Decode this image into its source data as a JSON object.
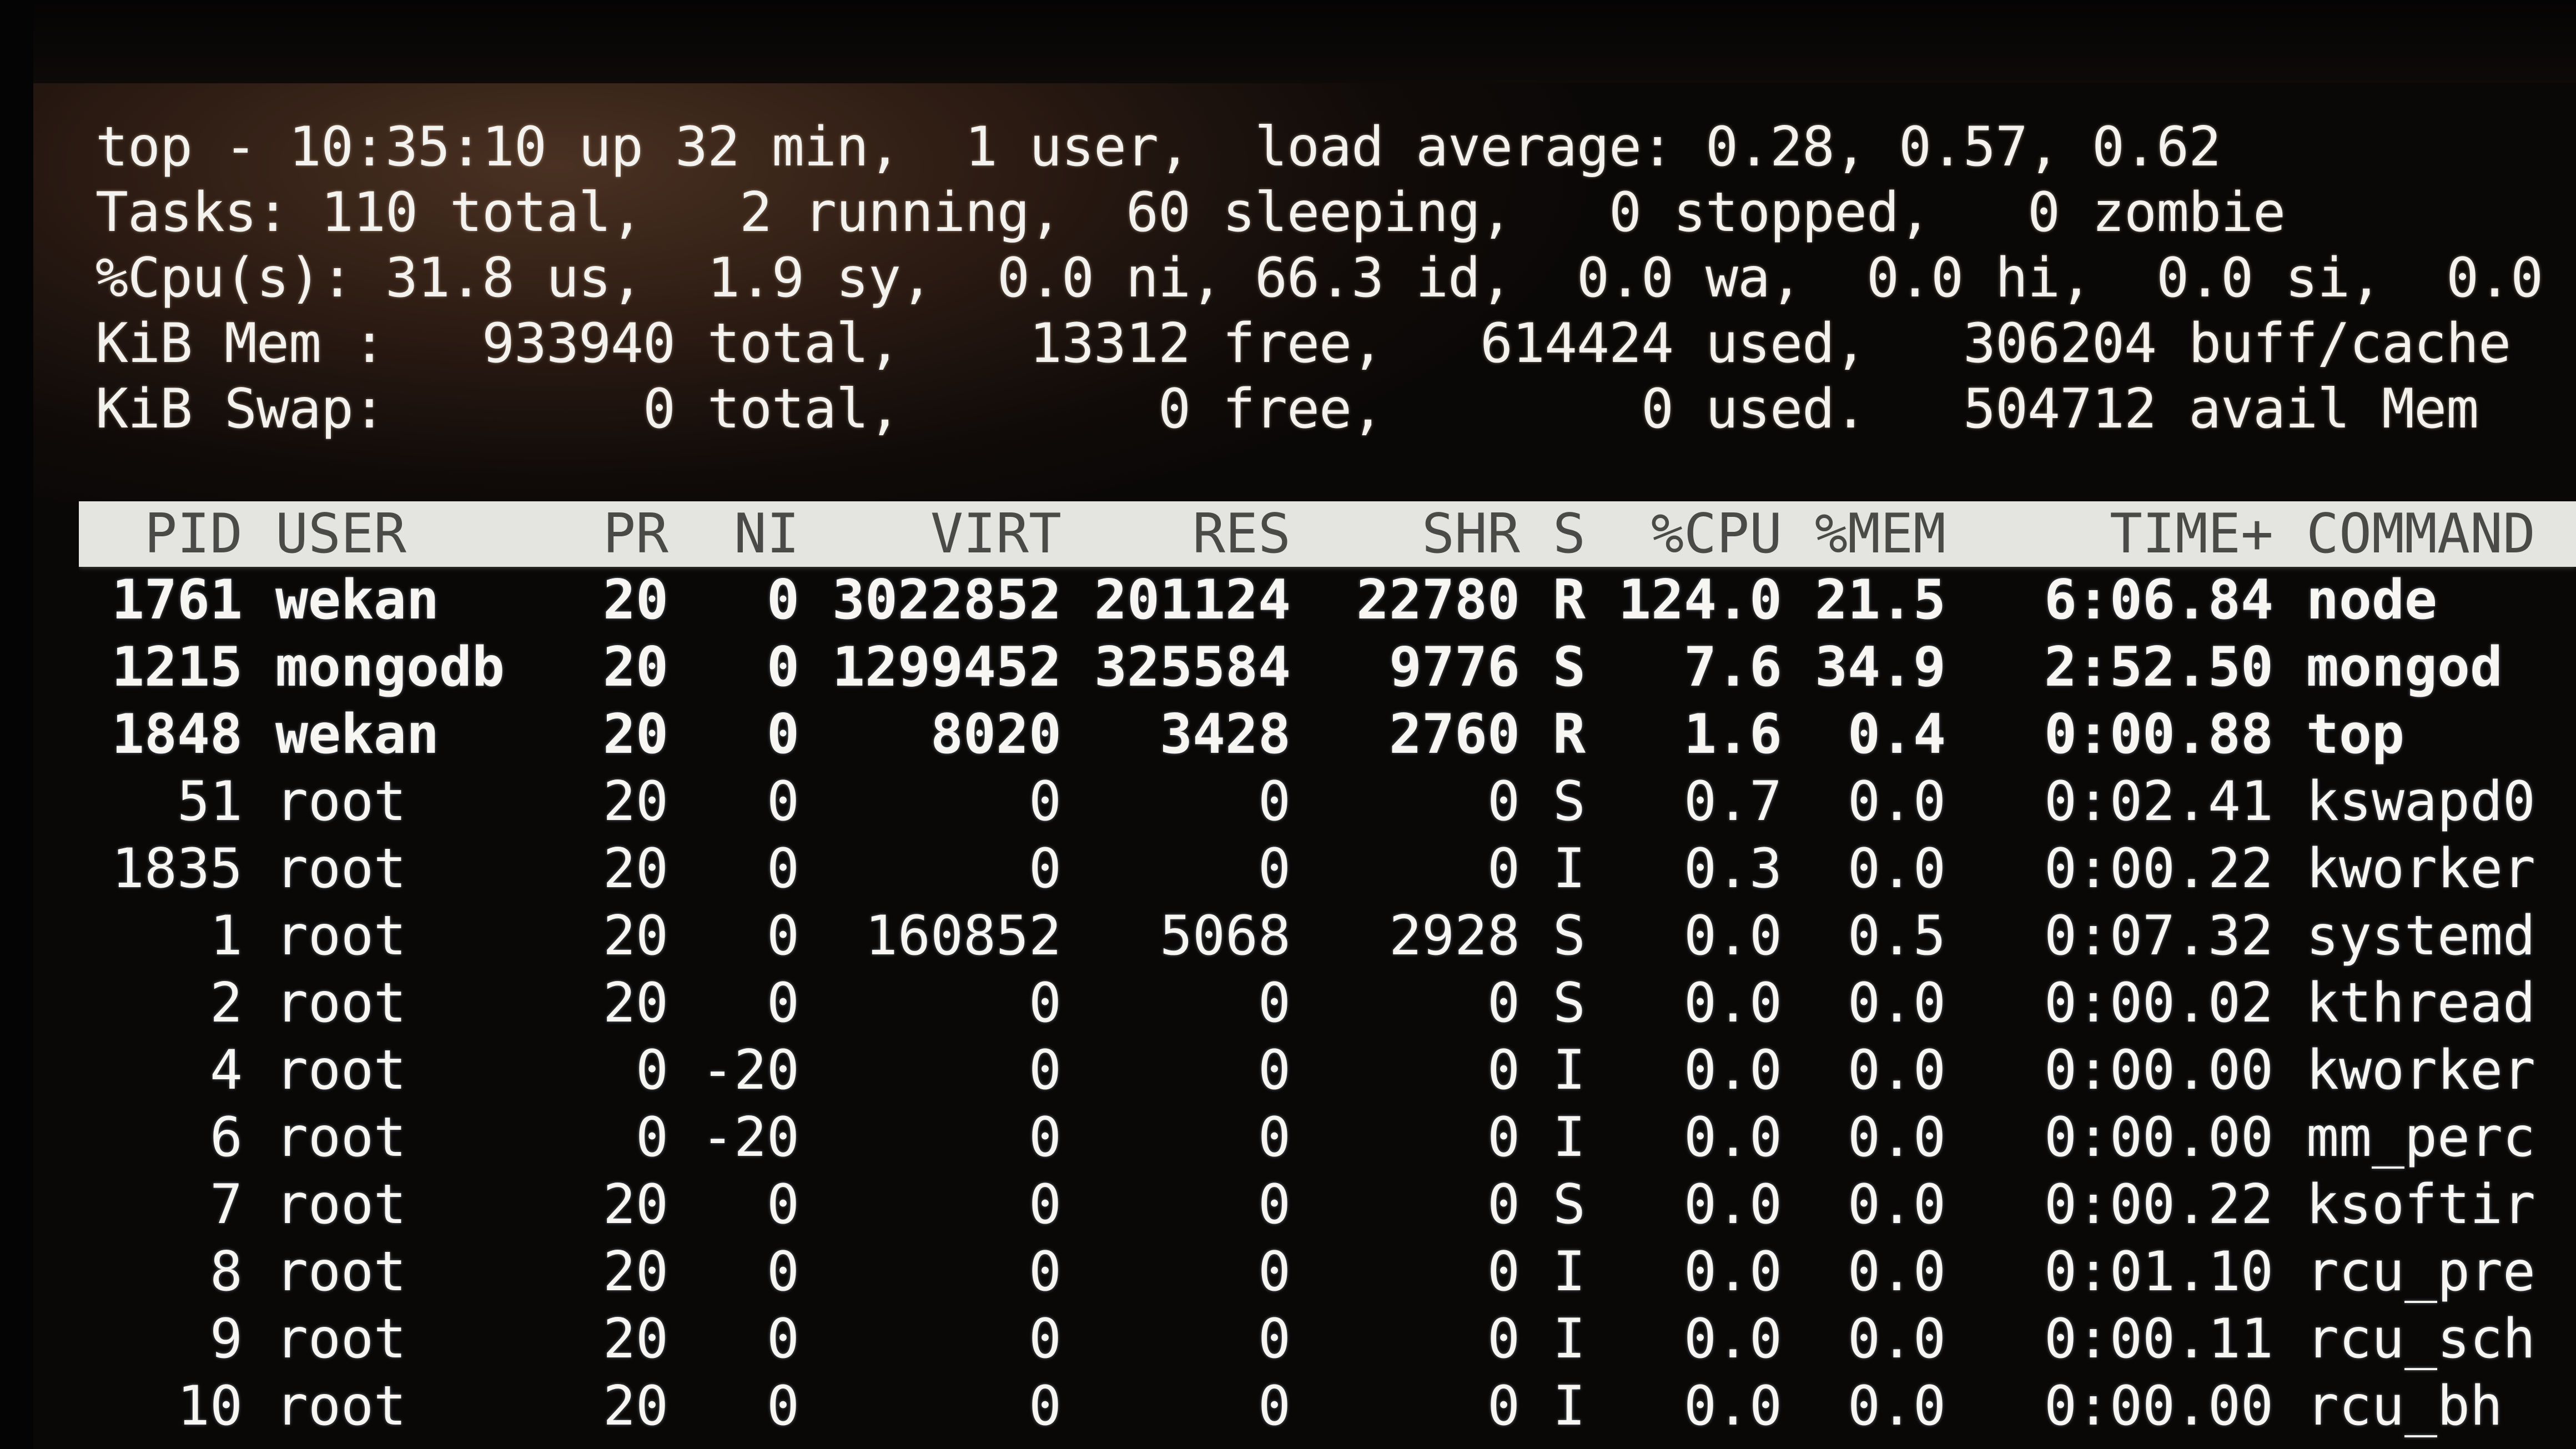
{
  "summary": {
    "line1": "top - 10:35:10 up 32 min,  1 user,  load average: 0.28, 0.57, 0.62",
    "line2": "Tasks: 110 total,   2 running,  60 sleeping,   0 stopped,   0 zombie",
    "line3": "%Cpu(s): 31.8 us,  1.9 sy,  0.0 ni, 66.3 id,  0.0 wa,  0.0 hi,  0.0 si,  0.0",
    "line4": "KiB Mem :   933940 total,    13312 free,   614424 used,   306204 buff/cache",
    "line5": "KiB Swap:        0 total,        0 free,        0 used.   504712 avail Mem"
  },
  "table": {
    "columns": [
      "PID",
      "USER",
      "PR",
      "NI",
      "VIRT",
      "RES",
      "SHR",
      "S",
      "%CPU",
      "%MEM",
      "TIME+",
      "COMMAND"
    ],
    "rows": [
      [
        "1761",
        "wekan",
        "20",
        "0",
        "3022852",
        "201124",
        "22780",
        "R",
        "124.0",
        "21.5",
        "6:06.84",
        "node"
      ],
      [
        "1215",
        "mongodb",
        "20",
        "0",
        "1299452",
        "325584",
        "9776",
        "S",
        "7.6",
        "34.9",
        "2:52.50",
        "mongod"
      ],
      [
        "1848",
        "wekan",
        "20",
        "0",
        "8020",
        "3428",
        "2760",
        "R",
        "1.6",
        "0.4",
        "0:00.88",
        "top"
      ],
      [
        "51",
        "root",
        "20",
        "0",
        "0",
        "0",
        "0",
        "S",
        "0.7",
        "0.0",
        "0:02.41",
        "kswapd0"
      ],
      [
        "1835",
        "root",
        "20",
        "0",
        "0",
        "0",
        "0",
        "I",
        "0.3",
        "0.0",
        "0:00.22",
        "kworker"
      ],
      [
        "1",
        "root",
        "20",
        "0",
        "160852",
        "5068",
        "2928",
        "S",
        "0.0",
        "0.5",
        "0:07.32",
        "systemd"
      ],
      [
        "2",
        "root",
        "20",
        "0",
        "0",
        "0",
        "0",
        "S",
        "0.0",
        "0.0",
        "0:00.02",
        "kthread"
      ],
      [
        "4",
        "root",
        "0",
        "-20",
        "0",
        "0",
        "0",
        "I",
        "0.0",
        "0.0",
        "0:00.00",
        "kworker"
      ],
      [
        "6",
        "root",
        "0",
        "-20",
        "0",
        "0",
        "0",
        "I",
        "0.0",
        "0.0",
        "0:00.00",
        "mm_perc"
      ],
      [
        "7",
        "root",
        "20",
        "0",
        "0",
        "0",
        "0",
        "S",
        "0.0",
        "0.0",
        "0:00.22",
        "ksoftir"
      ],
      [
        "8",
        "root",
        "20",
        "0",
        "0",
        "0",
        "0",
        "I",
        "0.0",
        "0.0",
        "0:01.10",
        "rcu_pre"
      ],
      [
        "9",
        "root",
        "20",
        "0",
        "0",
        "0",
        "0",
        "I",
        "0.0",
        "0.0",
        "0:00.11",
        "rcu_sch"
      ],
      [
        "10",
        "root",
        "20",
        "0",
        "0",
        "0",
        "0",
        "I",
        "0.0",
        "0.0",
        "0:00.00",
        "rcu_bh"
      ]
    ],
    "bold_rows": 3
  },
  "colors": {
    "header_bar": "#e4e4e1",
    "text": "#f8f6f2",
    "background": "#0a0807"
  }
}
